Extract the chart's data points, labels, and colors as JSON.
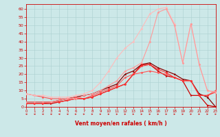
{
  "xlabel": "Vent moyen/en rafales ( km/h )",
  "xlim": [
    0,
    23
  ],
  "ylim": [
    0,
    63
  ],
  "yticks": [
    0,
    5,
    10,
    15,
    20,
    25,
    30,
    35,
    40,
    45,
    50,
    55,
    60
  ],
  "xticks": [
    0,
    1,
    2,
    3,
    4,
    5,
    6,
    7,
    8,
    9,
    10,
    11,
    12,
    13,
    14,
    15,
    16,
    17,
    18,
    19,
    20,
    21,
    22,
    23
  ],
  "background_color": "#cce8e8",
  "grid_color": "#aad0d0",
  "series": [
    {
      "x": [
        0,
        1,
        2,
        3,
        4,
        5,
        6,
        7,
        8,
        9,
        10,
        11,
        12,
        13,
        14,
        15,
        16,
        17,
        18,
        19,
        20,
        21,
        22,
        23
      ],
      "y": [
        3,
        3,
        3,
        3,
        4,
        5,
        6,
        7,
        8,
        10,
        12,
        14,
        20,
        22,
        26,
        27,
        24,
        22,
        20,
        17,
        16,
        8,
        6,
        0
      ],
      "color": "#880000",
      "lw": 0.9,
      "marker": "^",
      "ms": 1.8
    },
    {
      "x": [
        0,
        1,
        2,
        3,
        4,
        5,
        6,
        7,
        8,
        9,
        10,
        11,
        12,
        13,
        14,
        15,
        16,
        17,
        18,
        19,
        20,
        21,
        22,
        23
      ],
      "y": [
        2,
        2,
        2,
        2,
        3,
        4,
        5,
        5,
        6,
        8,
        10,
        12,
        14,
        20,
        26,
        26,
        22,
        19,
        18,
        16,
        7,
        7,
        1,
        0
      ],
      "color": "#cc0000",
      "lw": 0.9,
      "marker": ">",
      "ms": 1.8
    },
    {
      "x": [
        0,
        1,
        2,
        3,
        4,
        5,
        6,
        7,
        8,
        9,
        10,
        11,
        12,
        13,
        14,
        15,
        16,
        17,
        18,
        19,
        20,
        21,
        22,
        23
      ],
      "y": [
        8,
        7,
        6,
        5,
        5,
        5,
        6,
        5,
        7,
        9,
        11,
        13,
        18,
        20,
        21,
        22,
        21,
        20,
        18,
        16,
        16,
        7,
        7,
        10
      ],
      "color": "#ff5555",
      "lw": 0.8,
      "marker": "D",
      "ms": 1.5
    },
    {
      "x": [
        0,
        1,
        2,
        3,
        4,
        5,
        6,
        7,
        8,
        9,
        10,
        11,
        12,
        13,
        14,
        15,
        16,
        17,
        18,
        19,
        20,
        21,
        22,
        23
      ],
      "y": [
        2,
        2,
        2,
        3,
        3,
        4,
        5,
        5,
        6,
        8,
        10,
        12,
        14,
        20,
        25,
        26,
        23,
        21,
        18,
        16,
        16,
        7,
        7,
        9
      ],
      "color": "#ff3333",
      "lw": 0.8,
      "marker": "D",
      "ms": 1.5
    },
    {
      "x": [
        0,
        1,
        2,
        3,
        4,
        5,
        6,
        7,
        8,
        9,
        10,
        11,
        12,
        13,
        14,
        15,
        16,
        17,
        18,
        19,
        20,
        21,
        22,
        23
      ],
      "y": [
        8,
        7,
        7,
        6,
        6,
        6,
        7,
        8,
        10,
        15,
        22,
        30,
        36,
        40,
        48,
        57,
        60,
        61,
        51,
        27,
        51,
        26,
        10,
        9
      ],
      "color": "#ffbbbb",
      "lw": 0.8,
      "marker": "D",
      "ms": 1.5
    },
    {
      "x": [
        0,
        1,
        2,
        3,
        4,
        5,
        6,
        7,
        8,
        9,
        10,
        11,
        12,
        13,
        14,
        15,
        16,
        17,
        18,
        19,
        20,
        21,
        22,
        23
      ],
      "y": [
        3,
        3,
        3,
        3,
        4,
        5,
        5,
        7,
        8,
        10,
        13,
        16,
        22,
        24,
        27,
        40,
        58,
        60,
        50,
        27,
        51,
        26,
        10,
        9
      ],
      "color": "#ff9999",
      "lw": 0.8,
      "marker": "D",
      "ms": 1.5
    }
  ],
  "wind_dirs": [
    "W",
    "W",
    "W",
    "W",
    "W",
    "W",
    "E",
    "E",
    "E",
    "E",
    "E",
    "E",
    "E",
    "E",
    "E",
    "E",
    "E",
    "E",
    "E",
    "E",
    "E",
    "E",
    "E",
    "E"
  ]
}
